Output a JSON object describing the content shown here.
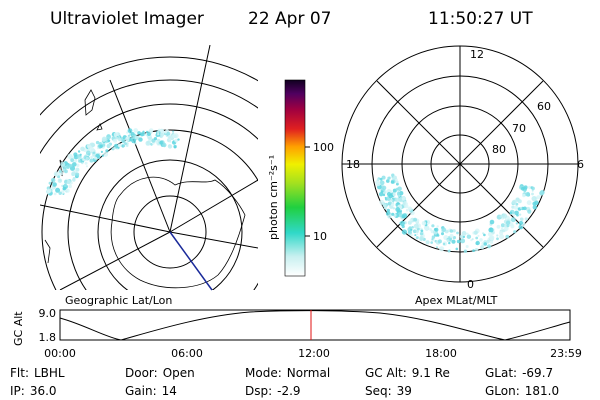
{
  "header": {
    "title": "Ultraviolet Imager",
    "date": "22 Apr 07",
    "time": "11:50:27 UT"
  },
  "colorbar": {
    "unit": "photon cm⁻²s⁻¹",
    "ticks": [
      "100",
      "10"
    ]
  },
  "polar_plot": {
    "mlt_labels": [
      "12",
      "18",
      "6",
      "0"
    ],
    "lat_labels": [
      "60",
      "70",
      "80"
    ]
  },
  "panel_labels": [
    "Geographic Lat/Lon",
    "Apex MLat/MLT"
  ],
  "altitude_plot": {
    "ylabel": "GC Alt",
    "yticks": [
      "9.0",
      "1.8"
    ],
    "xticks": [
      "00:00",
      "06:00",
      "12:00",
      "18:00",
      "23:59"
    ]
  },
  "info": [
    [
      {
        "label": "Flt:",
        "value": "LBHL"
      },
      {
        "label": "Door:",
        "value": "Open"
      },
      {
        "label": "Mode:",
        "value": "Normal"
      },
      {
        "label": "GC Alt:",
        "value": "9.1 Re"
      },
      {
        "label": "GLat:",
        "value": "-69.7"
      }
    ],
    [
      {
        "label": "IP:",
        "value": "36.0"
      },
      {
        "label": "Gain:",
        "value": "14"
      },
      {
        "label": "Dsp:",
        "value": "-2.9"
      },
      {
        "label": "Seq:",
        "value": "39"
      },
      {
        "label": "GLon:",
        "value": "181.0"
      }
    ]
  ]
}
